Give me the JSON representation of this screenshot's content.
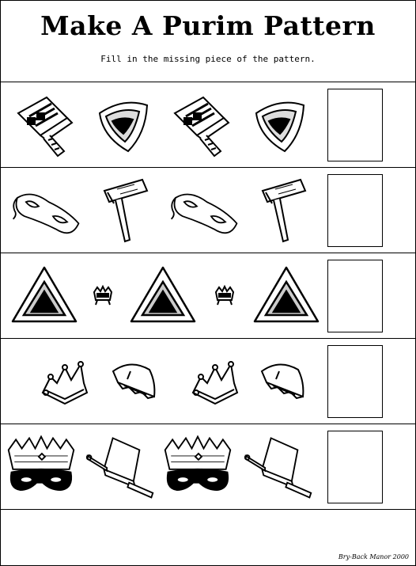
{
  "title": "Make A Purim Pattern",
  "instructions": "Fill in the missing piece of the pattern.",
  "rows": [
    {
      "items": [
        "gragger-icon",
        "hamantash-icon",
        "gragger-icon",
        "hamantash-icon"
      ]
    },
    {
      "items": [
        "mask-icon",
        "noisemaker-icon",
        "mask-icon",
        "noisemaker-icon"
      ]
    },
    {
      "items": [
        "hamantash-icon",
        "small-crown-icon",
        "hamantash-icon",
        "small-crown-icon",
        "hamantash-icon"
      ]
    },
    {
      "items": [
        "crown-icon",
        "hat-icon",
        "crown-icon",
        "hat-icon"
      ]
    },
    {
      "items": [
        "crown-mask-icon",
        "book-gragger-icon",
        "crown-mask-icon",
        "book-gragger-icon"
      ]
    }
  ],
  "credit": "Bry-Back Manor 2000"
}
